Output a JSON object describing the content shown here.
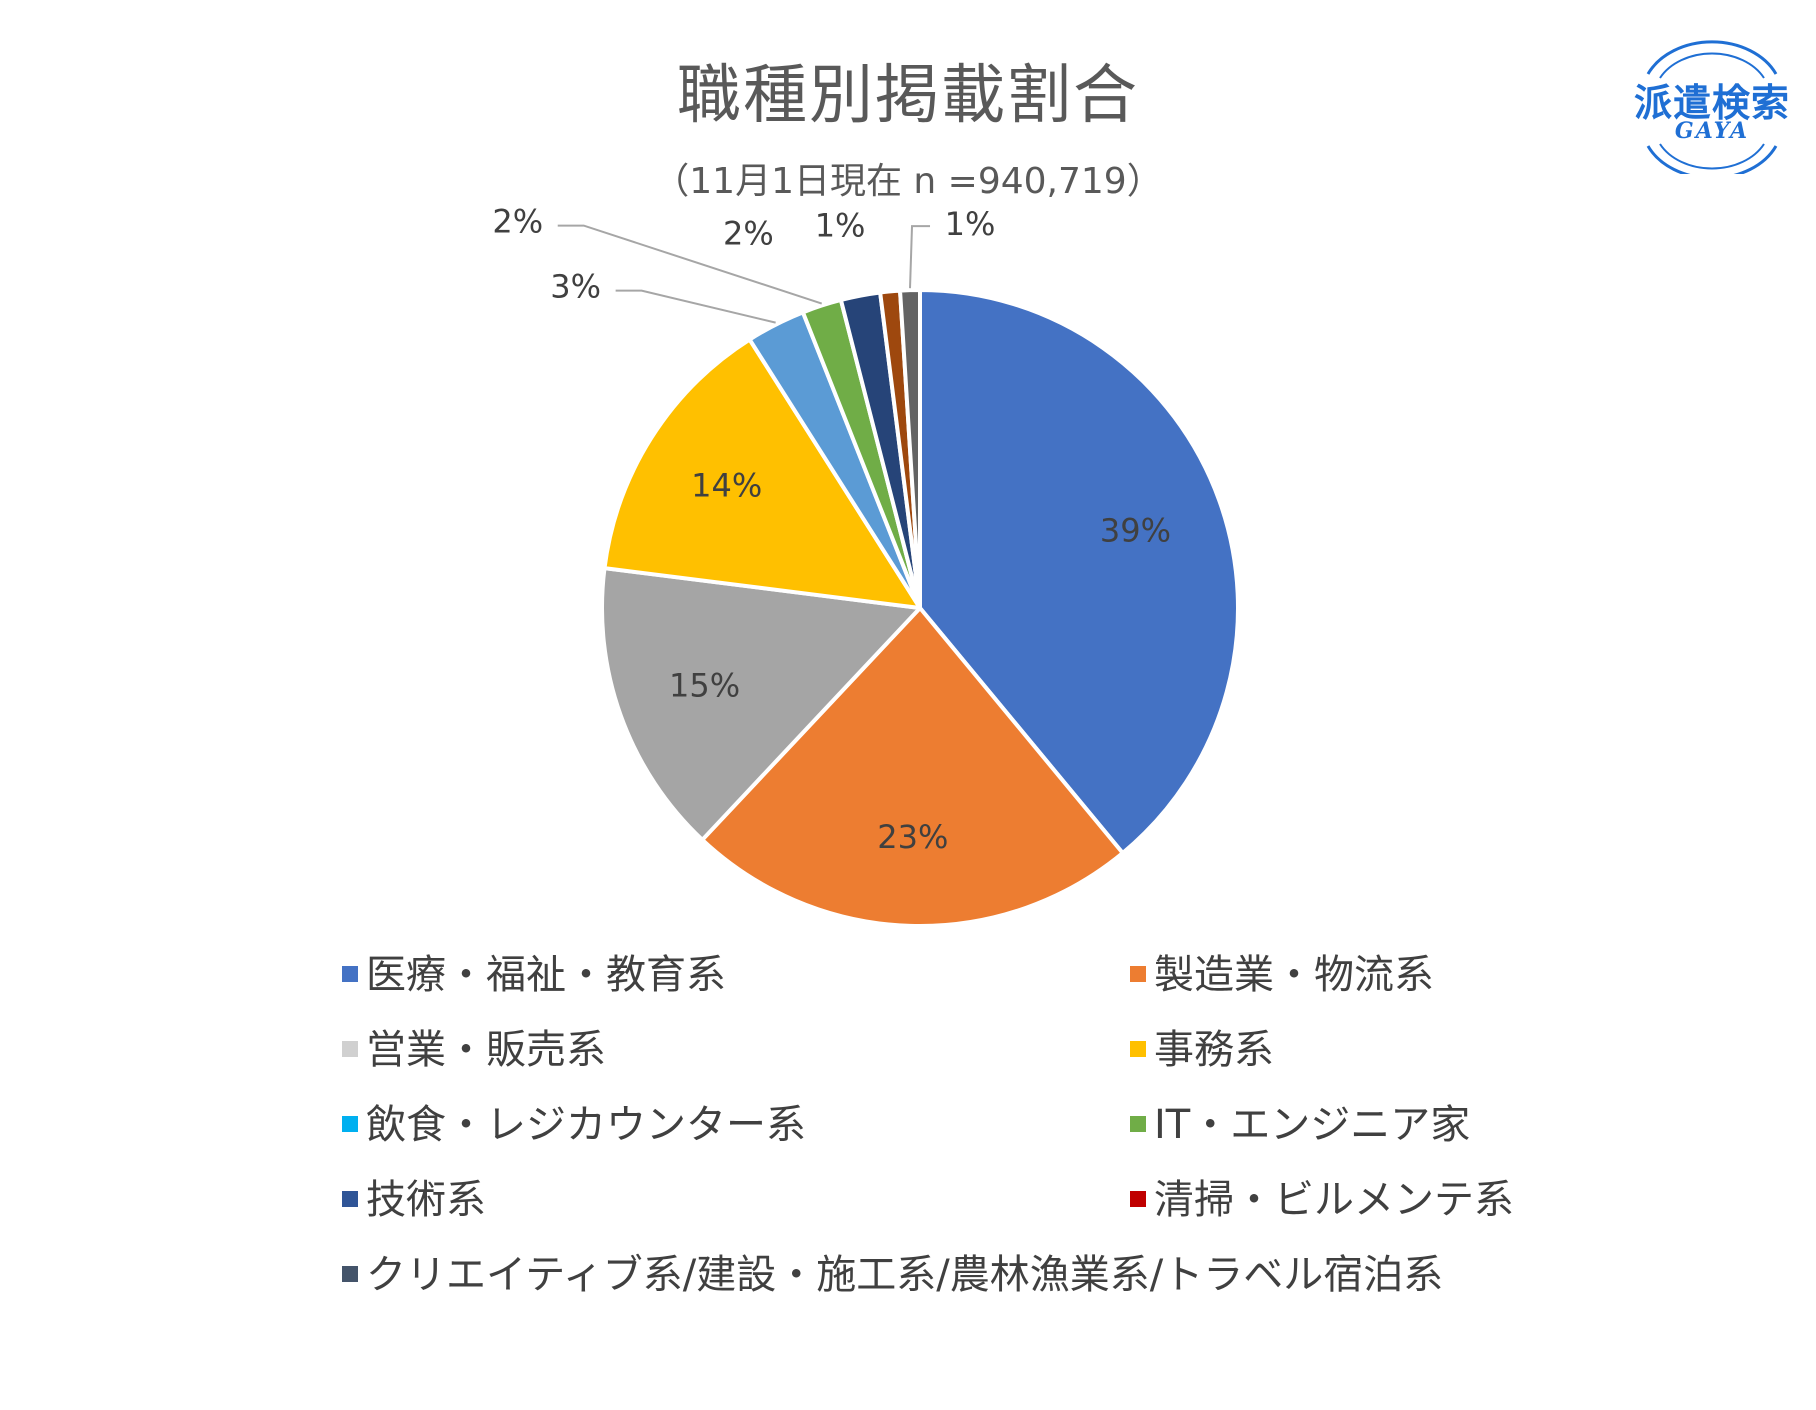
{
  "chart_data": {
    "type": "pie",
    "title": "職種別掲載割合",
    "subtitle": "（11月1日現在 n =940,719）",
    "slices": [
      {
        "label": "医療・福祉・教育系",
        "value": 39,
        "display": "39%",
        "color": "#4472C4"
      },
      {
        "label": "製造業・物流系",
        "value": 23,
        "display": "23%",
        "color": "#ED7D31"
      },
      {
        "label": "営業・販売系",
        "value": 15,
        "display": "15%",
        "color": "#A5A5A5"
      },
      {
        "label": "事務系",
        "value": 14,
        "display": "14%",
        "color": "#FFC000"
      },
      {
        "label": "飲食・レジカウンター系",
        "value": 3,
        "display": "3%",
        "color": "#5B9BD5"
      },
      {
        "label": "IT・エンジニア家",
        "value": 2,
        "display": "2%",
        "color": "#70AD47"
      },
      {
        "label": "技術系",
        "value": 2,
        "display": "2%",
        "color": "#264478"
      },
      {
        "label": "清掃・ビルメンテ系",
        "value": 1,
        "display": "1%",
        "color": "#9E480E"
      },
      {
        "label": "クリエイティブ系/建設・施工系/農林漁業系/トラベル宿泊系",
        "value": 1,
        "display": "1%",
        "color": "#636363"
      }
    ],
    "legend": {
      "placement": "bottom",
      "items": [
        {
          "label": "医療・福祉・教育系",
          "color": "#4472C4"
        },
        {
          "label": "製造業・物流系",
          "color": "#ED7D31"
        },
        {
          "label": "営業・販売系",
          "color": "#D0D0D0"
        },
        {
          "label": "事務系",
          "color": "#FFC000"
        },
        {
          "label": "飲食・レジカウンター系",
          "color": "#00B0F0"
        },
        {
          "label": "IT・エンジニア家",
          "color": "#70AD47"
        },
        {
          "label": "技術系",
          "color": "#2F5597"
        },
        {
          "label": "清掃・ビルメンテ系",
          "color": "#C00000"
        },
        {
          "label": "クリエイティブ系/建設・施工系/農林漁業系/トラベル宿泊系",
          "color": "#44546A"
        }
      ]
    }
  },
  "logo": {
    "main": "派遣検索",
    "sub": "GAYA",
    "color": "#1F6FD4"
  }
}
